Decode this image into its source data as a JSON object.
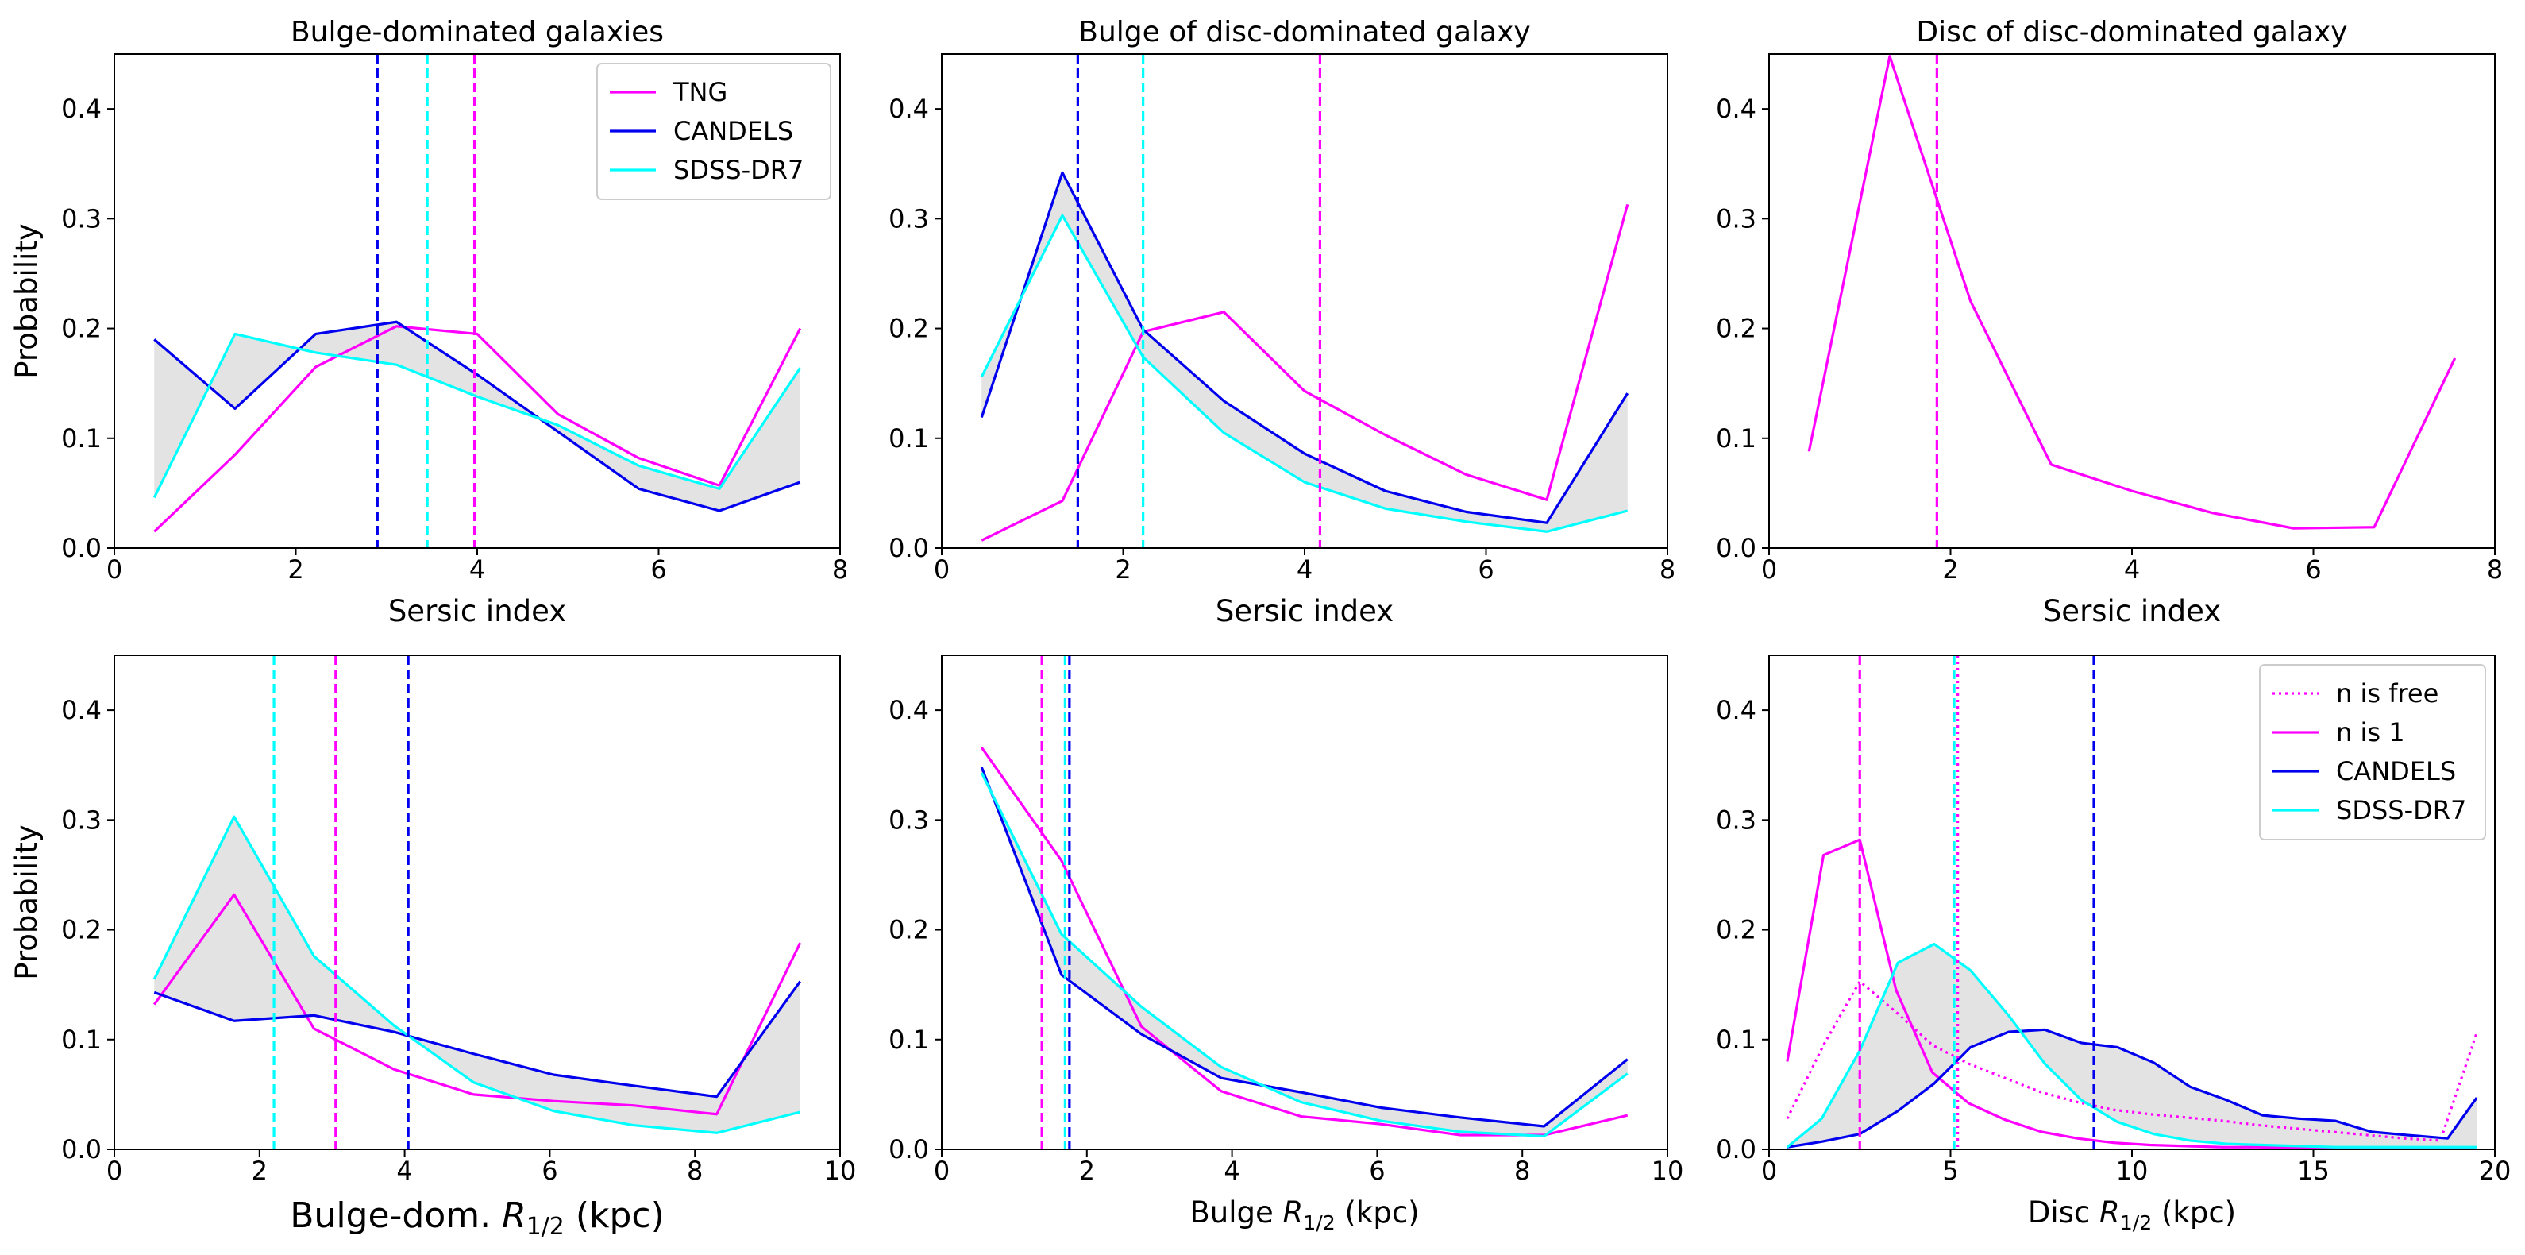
{
  "colors": {
    "tng": "#ff00ff",
    "candels": "#0000ee",
    "sdss": "#00ffff",
    "band": "#e3e3e3"
  },
  "chart_data": [
    {
      "type": "line",
      "title": "Bulge-dominated galaxies",
      "xlabel": "Sersic index",
      "ylabel": "Probability",
      "xlim": [
        0,
        8
      ],
      "ylim": [
        0,
        0.45
      ],
      "xticks": [
        0,
        2,
        4,
        6,
        8
      ],
      "yticks": [
        0.0,
        0.1,
        0.2,
        0.3,
        0.4
      ],
      "x": [
        0.44,
        1.33,
        2.22,
        3.11,
        4.0,
        4.89,
        5.78,
        6.67,
        7.56
      ],
      "series": [
        {
          "name": "TNG",
          "color_key": "tng",
          "style": "solid",
          "y": [
            0.015,
            0.085,
            0.165,
            0.202,
            0.195,
            0.122,
            0.082,
            0.057,
            0.2
          ]
        },
        {
          "name": "CANDELS",
          "color_key": "candels",
          "style": "solid",
          "y": [
            0.19,
            0.127,
            0.195,
            0.206,
            0.158,
            0.106,
            0.054,
            0.034,
            0.06
          ]
        },
        {
          "name": "SDSS-DR7",
          "color_key": "sdss",
          "style": "solid",
          "y": [
            0.046,
            0.195,
            0.178,
            0.167,
            0.138,
            0.112,
            0.075,
            0.054,
            0.164
          ]
        }
      ],
      "band": {
        "between": [
          "CANDELS",
          "SDSS-DR7"
        ]
      },
      "vlines": [
        {
          "x": 2.9,
          "color_key": "candels"
        },
        {
          "x": 3.45,
          "color_key": "sdss"
        },
        {
          "x": 3.97,
          "color_key": "tng"
        }
      ],
      "legend": {
        "location": "upper right",
        "entries": [
          {
            "label": "TNG",
            "color_key": "tng",
            "style": "solid"
          },
          {
            "label": "CANDELS",
            "color_key": "candels",
            "style": "solid"
          },
          {
            "label": "SDSS-DR7",
            "color_key": "sdss",
            "style": "solid"
          }
        ]
      }
    },
    {
      "type": "line",
      "title": "Bulge of disc-dominated galaxy",
      "xlabel": "Sersic index",
      "ylabel": "",
      "xlim": [
        0,
        8
      ],
      "ylim": [
        0,
        0.45
      ],
      "xticks": [
        0,
        2,
        4,
        6,
        8
      ],
      "yticks": [
        0.0,
        0.1,
        0.2,
        0.3,
        0.4
      ],
      "x": [
        0.44,
        1.33,
        2.22,
        3.11,
        4.0,
        4.89,
        5.78,
        6.67,
        7.56
      ],
      "series": [
        {
          "name": "TNG",
          "color_key": "tng",
          "style": "solid",
          "y": [
            0.007,
            0.043,
            0.197,
            0.215,
            0.143,
            0.103,
            0.067,
            0.044,
            0.313
          ]
        },
        {
          "name": "CANDELS",
          "color_key": "candels",
          "style": "solid",
          "y": [
            0.119,
            0.342,
            0.199,
            0.134,
            0.086,
            0.052,
            0.033,
            0.023,
            0.141
          ]
        },
        {
          "name": "SDSS-DR7",
          "color_key": "sdss",
          "style": "solid",
          "y": [
            0.156,
            0.303,
            0.174,
            0.105,
            0.06,
            0.036,
            0.024,
            0.015,
            0.034
          ]
        }
      ],
      "band": {
        "between": [
          "CANDELS",
          "SDSS-DR7"
        ]
      },
      "vlines": [
        {
          "x": 1.5,
          "color_key": "candels"
        },
        {
          "x": 2.22,
          "color_key": "sdss"
        },
        {
          "x": 4.17,
          "color_key": "tng"
        }
      ]
    },
    {
      "type": "line",
      "title": "Disc of disc-dominated galaxy",
      "xlabel": "Sersic index",
      "ylabel": "",
      "xlim": [
        0,
        8
      ],
      "ylim": [
        0,
        0.45
      ],
      "xticks": [
        0,
        2,
        4,
        6,
        8
      ],
      "yticks": [
        0.0,
        0.1,
        0.2,
        0.3,
        0.4
      ],
      "x": [
        0.44,
        1.33,
        2.22,
        3.11,
        4.0,
        4.89,
        5.78,
        6.67,
        7.56
      ],
      "series": [
        {
          "name": "TNG",
          "color_key": "tng",
          "style": "solid",
          "y": [
            0.088,
            0.448,
            0.225,
            0.076,
            0.052,
            0.032,
            0.018,
            0.019,
            0.173
          ]
        }
      ],
      "vlines": [
        {
          "x": 1.85,
          "color_key": "tng"
        }
      ]
    },
    {
      "type": "line",
      "title": "",
      "xlabel_main": "Bulge-dom. ",
      "xlabel_sub": "1/2",
      "xlabel_end": " (kpc)",
      "xlabel_size": "large",
      "ylabel": "Probability",
      "xlim": [
        0,
        10
      ],
      "ylim": [
        0,
        0.45
      ],
      "xticks": [
        0,
        2,
        4,
        6,
        8,
        10
      ],
      "yticks": [
        0.0,
        0.1,
        0.2,
        0.3,
        0.4
      ],
      "x": [
        0.55,
        1.65,
        2.75,
        3.85,
        4.95,
        6.05,
        7.15,
        8.3,
        9.45
      ],
      "series": [
        {
          "name": "TNG",
          "color_key": "tng",
          "style": "solid",
          "y": [
            0.132,
            0.232,
            0.11,
            0.073,
            0.05,
            0.044,
            0.04,
            0.032,
            0.188
          ]
        },
        {
          "name": "CANDELS",
          "color_key": "candels",
          "style": "solid",
          "y": [
            0.143,
            0.117,
            0.122,
            0.107,
            0.087,
            0.068,
            0.058,
            0.048,
            0.153
          ]
        },
        {
          "name": "SDSS-DR7",
          "color_key": "sdss",
          "style": "solid",
          "y": [
            0.155,
            0.303,
            0.176,
            0.113,
            0.061,
            0.035,
            0.022,
            0.015,
            0.034
          ]
        }
      ],
      "band": {
        "between": [
          "CANDELS",
          "SDSS-DR7"
        ]
      },
      "vlines": [
        {
          "x": 2.2,
          "color_key": "sdss"
        },
        {
          "x": 3.05,
          "color_key": "tng"
        },
        {
          "x": 4.05,
          "color_key": "candels"
        }
      ]
    },
    {
      "type": "line",
      "title": "",
      "xlabel_main": "Bulge ",
      "xlabel_sub": "1/2",
      "xlabel_end": " (kpc)",
      "ylabel": "",
      "xlim": [
        0,
        10
      ],
      "ylim": [
        0,
        0.45
      ],
      "xticks": [
        0,
        2,
        4,
        6,
        8,
        10
      ],
      "yticks": [
        0.0,
        0.1,
        0.2,
        0.3,
        0.4
      ],
      "x": [
        0.55,
        1.65,
        2.75,
        3.85,
        4.95,
        6.05,
        7.15,
        8.3,
        9.45
      ],
      "series": [
        {
          "name": "TNG",
          "color_key": "tng",
          "style": "solid",
          "y": [
            0.366,
            0.263,
            0.112,
            0.053,
            0.03,
            0.023,
            0.013,
            0.013,
            0.031
          ]
        },
        {
          "name": "CANDELS",
          "color_key": "candels",
          "style": "solid",
          "y": [
            0.348,
            0.159,
            0.105,
            0.065,
            0.052,
            0.038,
            0.029,
            0.021,
            0.082
          ]
        },
        {
          "name": "SDSS-DR7",
          "color_key": "sdss",
          "style": "solid",
          "y": [
            0.343,
            0.196,
            0.13,
            0.075,
            0.043,
            0.026,
            0.016,
            0.012,
            0.069
          ]
        }
      ],
      "band": {
        "between": [
          "CANDELS",
          "SDSS-DR7"
        ]
      },
      "vlines": [
        {
          "x": 1.38,
          "color_key": "tng"
        },
        {
          "x": 1.7,
          "color_key": "sdss"
        },
        {
          "x": 1.76,
          "color_key": "candels"
        }
      ]
    },
    {
      "type": "line",
      "title": "",
      "xlabel_main": "Disc ",
      "xlabel_sub": "1/2",
      "xlabel_end": " (kpc)",
      "ylabel": "",
      "xlim": [
        0,
        20
      ],
      "ylim": [
        0,
        0.45
      ],
      "xticks": [
        0,
        5,
        10,
        15,
        20
      ],
      "yticks": [
        0.0,
        0.1,
        0.2,
        0.3,
        0.4
      ],
      "series": [
        {
          "name": "n is free",
          "color_key": "tng",
          "style": "dotted",
          "x": [
            0.5,
            1.5,
            2.5,
            3.5,
            4.5,
            5.5,
            6.5,
            7.5,
            8.5,
            9.5,
            10.5,
            11.5,
            12.5,
            13.5,
            14.5,
            15.5,
            16.5,
            17.5,
            18.5,
            19.5
          ],
          "y": [
            0.028,
            0.095,
            0.153,
            0.125,
            0.095,
            0.078,
            0.065,
            0.052,
            0.043,
            0.036,
            0.032,
            0.029,
            0.026,
            0.022,
            0.019,
            0.016,
            0.013,
            0.01,
            0.008,
            0.106
          ]
        },
        {
          "name": "n is 1",
          "color_key": "tng",
          "style": "solid",
          "x": [
            0.5,
            1.5,
            2.5,
            3.5,
            4.5,
            5.5,
            6.5,
            7.5,
            8.5,
            9.5,
            10.5,
            11.5,
            12.5,
            13.5,
            14.5,
            15.5,
            16.5,
            17.5,
            18.5,
            19.5
          ],
          "y": [
            0.08,
            0.268,
            0.282,
            0.145,
            0.07,
            0.042,
            0.027,
            0.016,
            0.01,
            0.006,
            0.004,
            0.003,
            0.002,
            0.002,
            0.001,
            0.001,
            0.001,
            0.001,
            0.001,
            0.001
          ]
        },
        {
          "name": "CANDELS",
          "color_key": "candels",
          "style": "solid",
          "x": [
            0.5,
            1.45,
            2.5,
            3.55,
            4.55,
            5.55,
            6.6,
            7.6,
            8.6,
            9.6,
            10.6,
            11.6,
            12.6,
            13.6,
            14.6,
            15.6,
            16.6,
            17.6,
            18.7,
            19.5
          ],
          "y": [
            0.002,
            0.007,
            0.014,
            0.035,
            0.06,
            0.093,
            0.107,
            0.109,
            0.097,
            0.093,
            0.079,
            0.057,
            0.045,
            0.031,
            0.028,
            0.026,
            0.016,
            0.013,
            0.01,
            0.047
          ]
        },
        {
          "name": "SDSS-DR7",
          "color_key": "sdss",
          "style": "solid",
          "x": [
            0.5,
            1.45,
            2.5,
            3.55,
            4.55,
            5.55,
            6.6,
            7.6,
            8.6,
            9.6,
            10.6,
            11.6,
            12.6,
            13.6,
            14.6,
            15.6,
            16.6,
            17.6,
            18.7,
            19.5
          ],
          "y": [
            0.002,
            0.028,
            0.09,
            0.17,
            0.187,
            0.163,
            0.122,
            0.078,
            0.045,
            0.025,
            0.014,
            0.008,
            0.005,
            0.004,
            0.003,
            0.002,
            0.002,
            0.002,
            0.002,
            0.002
          ]
        }
      ],
      "band": {
        "between": [
          "CANDELS",
          "SDSS-DR7"
        ]
      },
      "vlines": [
        {
          "x": 2.5,
          "color_key": "tng"
        },
        {
          "x": 5.1,
          "color_key": "sdss"
        },
        {
          "x": 5.2,
          "color_key": "tng",
          "style": "dotted"
        },
        {
          "x": 8.95,
          "color_key": "candels"
        }
      ],
      "legend": {
        "location": "upper right",
        "entries": [
          {
            "label": "n is free",
            "color_key": "tng",
            "style": "dotted"
          },
          {
            "label": "n is 1",
            "color_key": "tng",
            "style": "solid"
          },
          {
            "label": "CANDELS",
            "color_key": "candels",
            "style": "solid"
          },
          {
            "label": "SDSS-DR7",
            "color_key": "sdss",
            "style": "solid"
          }
        ]
      }
    }
  ]
}
